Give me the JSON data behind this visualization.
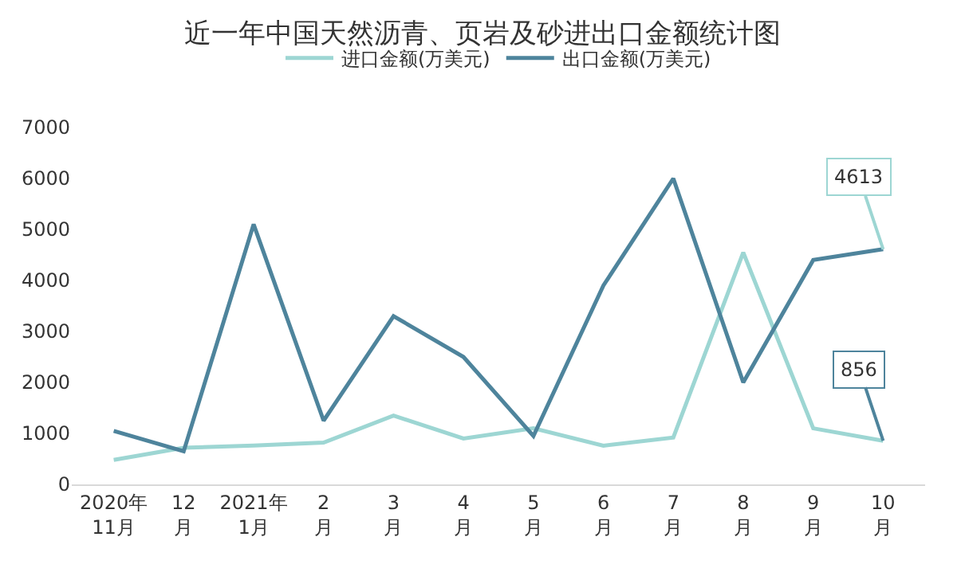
{
  "chart_data": {
    "type": "line",
    "title": "近一年中国天然沥青、页岩及砂进出口金额统计图",
    "categories": [
      "2020年\n11月",
      "12\n月",
      "2021年\n1月",
      "2\n月",
      "3\n月",
      "4\n月",
      "5\n月",
      "6\n月",
      "7\n月",
      "8\n月",
      "9\n月",
      "10\n月"
    ],
    "series": [
      {
        "name": "进口金额(万美元)",
        "color": "#9dd6d3",
        "values": [
          480,
          720,
          760,
          820,
          1350,
          900,
          1100,
          760,
          920,
          4550,
          1100,
          856
        ]
      },
      {
        "name": "出口金额(万美元)",
        "color": "#4e849c",
        "values": [
          1050,
          650,
          5100,
          1250,
          3300,
          2500,
          950,
          3900,
          6000,
          2000,
          4400,
          4613
        ]
      }
    ],
    "ylim": [
      0,
      7000
    ],
    "yticks": [
      0,
      1000,
      2000,
      3000,
      4000,
      5000,
      6000,
      7000
    ],
    "grid": false,
    "legend": "top",
    "marker": "none",
    "annotations": [
      {
        "text": "4613",
        "x": "10\n月",
        "y": 4613
      },
      {
        "text": "856",
        "x": "10\n月",
        "y": 856
      }
    ]
  }
}
